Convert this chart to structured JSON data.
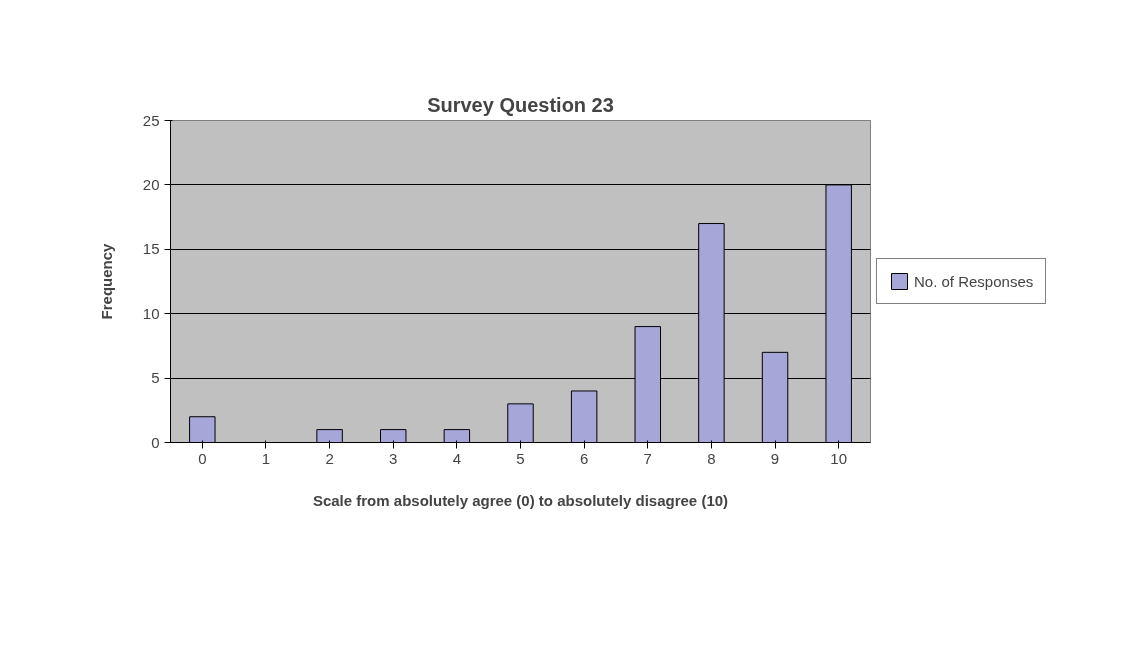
{
  "chart_data": {
    "type": "bar",
    "title": "Survey Question 23",
    "xlabel": "Scale from absolutely agree (0) to absolutely disagree (10)",
    "ylabel": "Frequency",
    "categories": [
      "0",
      "1",
      "2",
      "3",
      "4",
      "5",
      "6",
      "7",
      "8",
      "9",
      "10"
    ],
    "series": [
      {
        "name": "No. of Responses",
        "color": "#a6a6d9",
        "values": [
          2,
          0,
          1,
          1,
          1,
          3,
          4,
          9,
          17,
          7,
          20
        ]
      }
    ],
    "ylim": [
      0,
      25
    ],
    "yticks": [
      0,
      5,
      10,
      15,
      20,
      25
    ],
    "grid": "y",
    "legend": "right"
  }
}
